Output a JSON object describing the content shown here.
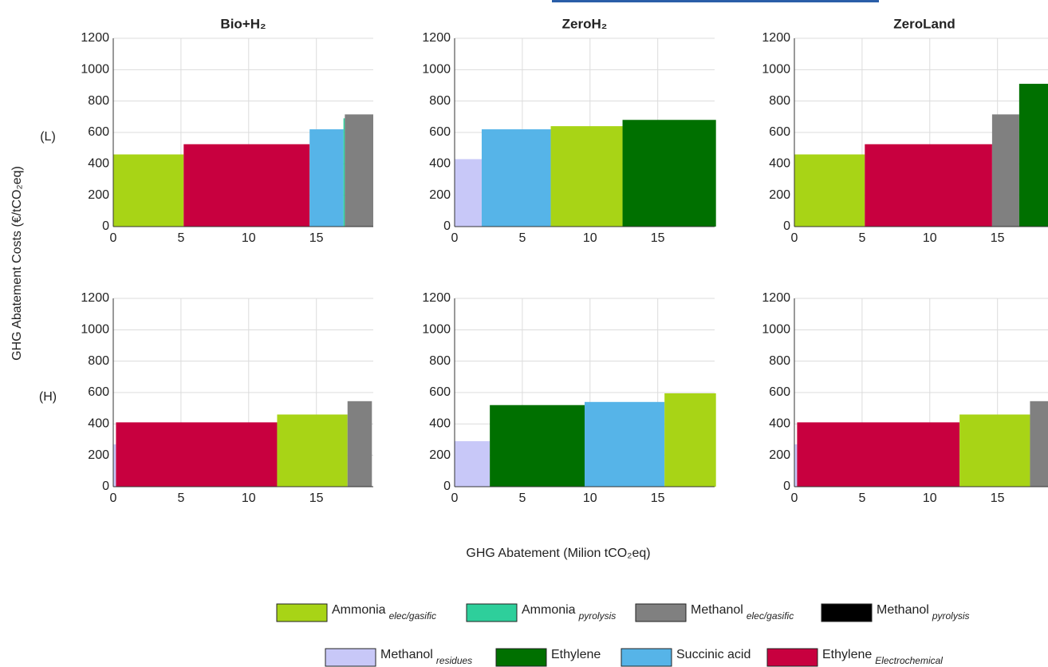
{
  "ylabel": "GHG Abatement Costs (€/tCO₂eq)",
  "xlabel": "GHG Abatement (Milion tCO₂eq)",
  "legend": [
    {
      "name": "Ammonia",
      "sub": "elec/gasific",
      "color": "#a8d416"
    },
    {
      "name": "Ammonia",
      "sub": "pyrolysis",
      "color": "#2ecf9b"
    },
    {
      "name": "Methanol",
      "sub": "elec/gasific",
      "color": "#808080"
    },
    {
      "name": "Methanol",
      "sub": "pyrolysis",
      "color": "#000000"
    },
    {
      "name": "Methanol",
      "sub": "residues",
      "color": "#c8c8f8"
    },
    {
      "name": "Ethylene",
      "color": "#007000"
    },
    {
      "name": "Succinic acid",
      "color": "#56b4e8"
    },
    {
      "name": "Ethylene",
      "sub": "Electrochemical",
      "color": "#c8003f"
    }
  ],
  "chart_data": [
    {
      "type": "mac",
      "title": "Bio+H₂",
      "row_label": "(L)",
      "xlim": [
        0,
        19.2
      ],
      "xticks": [
        0,
        5,
        10,
        15
      ],
      "ylim": [
        0,
        1200
      ],
      "yticks": [
        0,
        200,
        400,
        600,
        800,
        1000,
        1200
      ],
      "grid": true,
      "bars": [
        {
          "width": 5.2,
          "value": 460,
          "color": "#a8d416"
        },
        {
          "width": 9.3,
          "value": 525,
          "color": "#c8003f"
        },
        {
          "width": 2.5,
          "value": 620,
          "color": "#56b4e8"
        },
        {
          "width": 0.1,
          "value": 690,
          "color": "#2ecf9b"
        },
        {
          "width": 2.1,
          "value": 715,
          "color": "#808080"
        }
      ]
    },
    {
      "type": "mac",
      "title": "ZeroH₂",
      "xlim": [
        0,
        19.2
      ],
      "xticks": [
        0,
        5,
        10,
        15
      ],
      "ylim": [
        0,
        1200
      ],
      "yticks": [
        0,
        200,
        400,
        600,
        800,
        1000,
        1200
      ],
      "grid": true,
      "bars": [
        {
          "width": 2.0,
          "value": 430,
          "color": "#c8c8f8"
        },
        {
          "width": 5.1,
          "value": 620,
          "color": "#56b4e8"
        },
        {
          "width": 5.3,
          "value": 640,
          "color": "#a8d416"
        },
        {
          "width": 6.9,
          "value": 680,
          "color": "#007000"
        }
      ]
    },
    {
      "type": "mac",
      "title": "ZeroLand",
      "xlim": [
        0,
        19.2
      ],
      "xticks": [
        0,
        5,
        10,
        15
      ],
      "ylim": [
        0,
        1200
      ],
      "yticks": [
        0,
        200,
        400,
        600,
        800,
        1000,
        1200
      ],
      "grid": true,
      "bars": [
        {
          "width": 5.2,
          "value": 460,
          "color": "#a8d416"
        },
        {
          "width": 9.4,
          "value": 525,
          "color": "#c8003f"
        },
        {
          "width": 2.0,
          "value": 715,
          "color": "#808080"
        },
        {
          "width": 2.2,
          "value": 910,
          "color": "#007000"
        }
      ]
    },
    {
      "type": "mac",
      "row_label": "(H)",
      "xlim": [
        0,
        19.2
      ],
      "xticks": [
        0,
        5,
        10,
        15
      ],
      "ylim": [
        0,
        1200
      ],
      "yticks": [
        0,
        200,
        400,
        600,
        800,
        1000,
        1200
      ],
      "grid": true,
      "bars": [
        {
          "width": 0.2,
          "value": 270,
          "color": "#c8c8f8"
        },
        {
          "width": 11.9,
          "value": 410,
          "color": "#c8003f"
        },
        {
          "width": 5.2,
          "value": 460,
          "color": "#a8d416"
        },
        {
          "width": 1.8,
          "value": 545,
          "color": "#808080"
        }
      ]
    },
    {
      "type": "mac",
      "xlim": [
        0,
        19.2
      ],
      "xticks": [
        0,
        5,
        10,
        15
      ],
      "ylim": [
        0,
        1200
      ],
      "yticks": [
        0,
        200,
        400,
        600,
        800,
        1000,
        1200
      ],
      "grid": true,
      "bars": [
        {
          "width": 2.6,
          "value": 290,
          "color": "#c8c8f8"
        },
        {
          "width": 7.0,
          "value": 520,
          "color": "#007000"
        },
        {
          "width": 5.9,
          "value": 540,
          "color": "#56b4e8"
        },
        {
          "width": 3.8,
          "value": 595,
          "color": "#a8d416"
        }
      ]
    },
    {
      "type": "mac",
      "xlim": [
        0,
        19.2
      ],
      "xticks": [
        0,
        5,
        10,
        15
      ],
      "ylim": [
        0,
        1200
      ],
      "yticks": [
        0,
        200,
        400,
        600,
        800,
        1000,
        1200
      ],
      "grid": true,
      "bars": [
        {
          "width": 0.2,
          "value": 270,
          "color": "#c8c8f8"
        },
        {
          "width": 12.0,
          "value": 410,
          "color": "#c8003f"
        },
        {
          "width": 5.2,
          "value": 460,
          "color": "#a8d416"
        },
        {
          "width": 2.0,
          "value": 545,
          "color": "#808080"
        }
      ]
    }
  ]
}
